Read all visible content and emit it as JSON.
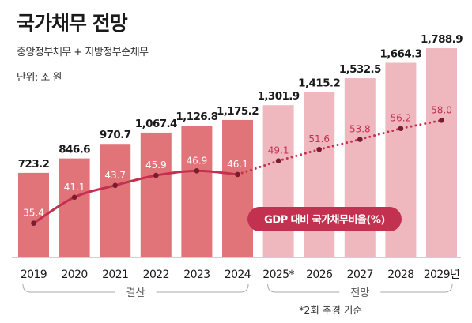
{
  "header": {
    "title": "국가채무 전망",
    "subtitle": "중앙정부채무 + 지방정부순채무",
    "unit": "단위: 조 원"
  },
  "chart_data": {
    "type": "bar",
    "categories": [
      "2019",
      "2020",
      "2021",
      "2022",
      "2023",
      "2024",
      "2025*",
      "2026",
      "2027",
      "2028",
      "2029년"
    ],
    "values": [
      723.2,
      846.6,
      970.7,
      1067.4,
      1126.8,
      1175.2,
      1301.9,
      1415.2,
      1532.5,
      1664.3,
      1788.9
    ],
    "value_labels": [
      "723.2",
      "846.6",
      "970.7",
      "1,067.4",
      "1,126.8",
      "1,175.2",
      "1,301.9",
      "1,415.2",
      "1,532.5",
      "1,664.3",
      "1,788.9"
    ],
    "series": [
      {
        "name": "GDP 대비 국가채무비율(%)",
        "values": [
          35.4,
          41.1,
          43.7,
          45.9,
          46.9,
          46.1,
          49.1,
          51.6,
          53.8,
          56.2,
          58.0
        ]
      }
    ],
    "ratio_labels": [
      "35.4",
      "41.1",
      "43.7",
      "45.9",
      "46.9",
      "46.1",
      "49.1",
      "51.6",
      "53.8",
      "56.2",
      "58.0"
    ],
    "groups": [
      {
        "label": "결산",
        "start": 0,
        "end": 5
      },
      {
        "label": "전망",
        "start": 6,
        "end": 10
      }
    ],
    "note": "*2회 추경 기준",
    "colors": {
      "actual_bar": "#e07479",
      "forecast_bar": "#efb8bf",
      "line": "#c2314f",
      "dot": "#7a1c2d",
      "ratio_label_actual": "#ffffff",
      "ratio_label_forecast": "#c2314f",
      "series_badge": "#c2314f"
    }
  }
}
